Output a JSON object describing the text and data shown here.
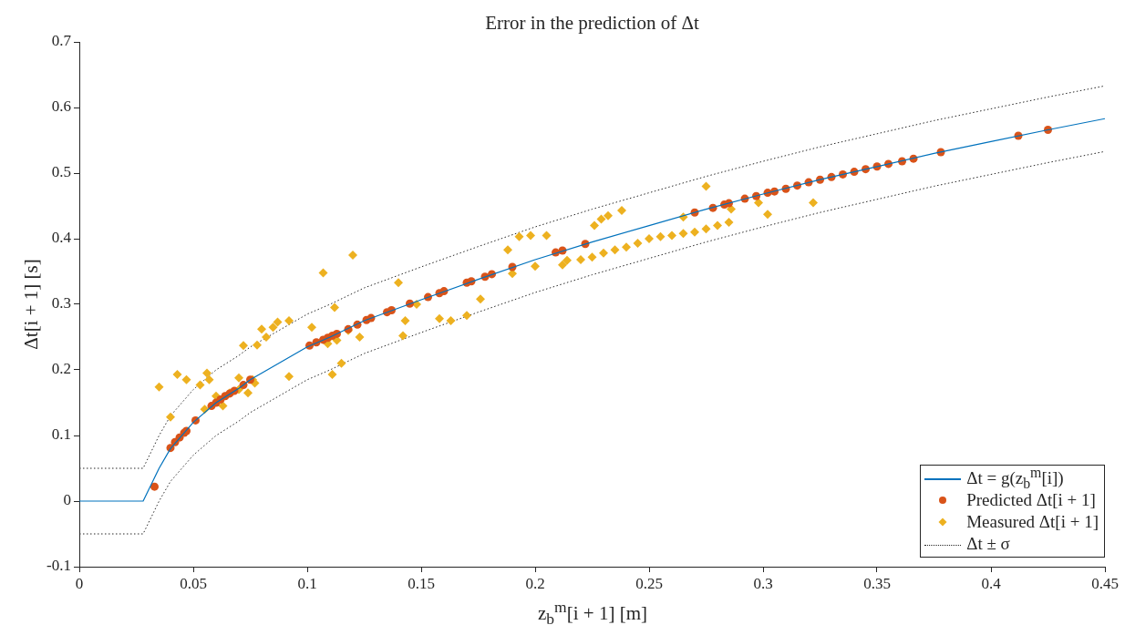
{
  "chart_data": {
    "type": "scatter",
    "title": "Error in the prediction of Δt",
    "xlabel": "z$_{b}$$^{m}$[i + 1] [m]",
    "ylabel": "Δt[i + 1] [s]",
    "xlim": [
      0,
      0.45
    ],
    "xticks": [
      0,
      0.05,
      0.1,
      0.15,
      0.2,
      0.25,
      0.3,
      0.35,
      0.4,
      0.45
    ],
    "ylim": [
      -0.1,
      0.7
    ],
    "yticks": [
      -0.1,
      0,
      0.1,
      0.2,
      0.3,
      0.4,
      0.5,
      0.6,
      0.7
    ],
    "grid": false,
    "legend": "bottom right",
    "series": [
      {
        "name": "Δt = g(z$_{b}$$^{m}$[i])",
        "type": "line",
        "marker": "none",
        "line_style": "solid",
        "color": "#0072bd",
        "x": [
          0,
          0.028,
          0.035,
          0.04,
          0.05,
          0.06,
          0.07,
          0.075,
          0.1,
          0.11,
          0.125,
          0.15,
          0.175,
          0.2,
          0.225,
          0.25,
          0.275,
          0.3,
          0.325,
          0.35,
          0.375,
          0.4,
          0.425,
          0.45
        ],
        "values": [
          0,
          0,
          0.05,
          0.08,
          0.12,
          0.15,
          0.172,
          0.185,
          0.235,
          0.25,
          0.275,
          0.307,
          0.338,
          0.368,
          0.395,
          0.42,
          0.445,
          0.468,
          0.49,
          0.51,
          0.53,
          0.548,
          0.566,
          0.583
        ]
      },
      {
        "name": "Predicted Δt[i + 1]",
        "type": "scatter",
        "marker": "circle",
        "color": "#d95319",
        "x": [
          0.033,
          0.04,
          0.042,
          0.044,
          0.046,
          0.047,
          0.051,
          0.058,
          0.06,
          0.062,
          0.064,
          0.066,
          0.068,
          0.072,
          0.075,
          0.101,
          0.104,
          0.107,
          0.109,
          0.111,
          0.113,
          0.118,
          0.122,
          0.126,
          0.128,
          0.135,
          0.137,
          0.145,
          0.153,
          0.158,
          0.16,
          0.17,
          0.172,
          0.178,
          0.181,
          0.19,
          0.209,
          0.212,
          0.222,
          0.27,
          0.278,
          0.283,
          0.285,
          0.292,
          0.297,
          0.302,
          0.305,
          0.31,
          0.315,
          0.32,
          0.325,
          0.33,
          0.335,
          0.34,
          0.345,
          0.35,
          0.355,
          0.361,
          0.366,
          0.378,
          0.412,
          0.425
        ],
        "values": [
          0.022,
          0.081,
          0.09,
          0.097,
          0.104,
          0.107,
          0.123,
          0.145,
          0.15,
          0.155,
          0.16,
          0.164,
          0.168,
          0.177,
          0.185,
          0.237,
          0.242,
          0.246,
          0.249,
          0.252,
          0.255,
          0.262,
          0.269,
          0.276,
          0.279,
          0.288,
          0.291,
          0.301,
          0.311,
          0.317,
          0.32,
          0.333,
          0.335,
          0.342,
          0.346,
          0.357,
          0.379,
          0.382,
          0.392,
          0.44,
          0.447,
          0.452,
          0.454,
          0.461,
          0.465,
          0.47,
          0.472,
          0.476,
          0.481,
          0.486,
          0.49,
          0.494,
          0.498,
          0.502,
          0.506,
          0.51,
          0.514,
          0.518,
          0.522,
          0.532,
          0.557,
          0.566
        ]
      },
      {
        "name": "Measured Δt[i + 1]",
        "type": "scatter",
        "marker": "diamond",
        "color": "#edb120",
        "x": [
          0.035,
          0.04,
          0.043,
          0.047,
          0.053,
          0.055,
          0.056,
          0.057,
          0.06,
          0.063,
          0.066,
          0.07,
          0.07,
          0.072,
          0.074,
          0.076,
          0.077,
          0.078,
          0.08,
          0.082,
          0.085,
          0.087,
          0.092,
          0.092,
          0.102,
          0.107,
          0.109,
          0.11,
          0.111,
          0.112,
          0.113,
          0.115,
          0.118,
          0.12,
          0.123,
          0.14,
          0.142,
          0.143,
          0.148,
          0.158,
          0.163,
          0.17,
          0.176,
          0.188,
          0.19,
          0.193,
          0.198,
          0.2,
          0.205,
          0.212,
          0.214,
          0.22,
          0.225,
          0.23,
          0.235,
          0.24,
          0.245,
          0.25,
          0.255,
          0.26,
          0.265,
          0.27,
          0.275,
          0.28,
          0.285,
          0.226,
          0.229,
          0.232,
          0.238,
          0.265,
          0.275,
          0.286,
          0.298,
          0.302,
          0.322
        ],
        "values": [
          0.174,
          0.128,
          0.193,
          0.185,
          0.177,
          0.14,
          0.195,
          0.185,
          0.16,
          0.145,
          0.165,
          0.188,
          0.17,
          0.237,
          0.165,
          0.185,
          0.18,
          0.238,
          0.262,
          0.25,
          0.265,
          0.273,
          0.275,
          0.19,
          0.265,
          0.348,
          0.24,
          0.25,
          0.193,
          0.295,
          0.245,
          0.21,
          0.26,
          0.375,
          0.25,
          0.333,
          0.252,
          0.275,
          0.3,
          0.278,
          0.275,
          0.283,
          0.308,
          0.383,
          0.347,
          0.403,
          0.405,
          0.358,
          0.405,
          0.36,
          0.367,
          0.368,
          0.372,
          0.378,
          0.383,
          0.387,
          0.393,
          0.4,
          0.403,
          0.405,
          0.408,
          0.41,
          0.415,
          0.42,
          0.425,
          0.42,
          0.43,
          0.435,
          0.443,
          0.433,
          0.48,
          0.445,
          0.455,
          0.437,
          0.455
        ]
      },
      {
        "name": "Δt ± σ",
        "type": "line",
        "marker": "none",
        "line_style": "dotted",
        "color": "#262626",
        "x": [
          0,
          0.028,
          0.035,
          0.04,
          0.05,
          0.06,
          0.07,
          0.075,
          0.1,
          0.11,
          0.125,
          0.15,
          0.175,
          0.2,
          0.225,
          0.25,
          0.275,
          0.3,
          0.325,
          0.35,
          0.375,
          0.4,
          0.425,
          0.45
        ],
        "values": [
          0.05,
          0.05,
          0.1,
          0.13,
          0.17,
          0.2,
          0.222,
          0.235,
          0.285,
          0.3,
          0.325,
          0.357,
          0.388,
          0.418,
          0.445,
          0.47,
          0.495,
          0.518,
          0.54,
          0.56,
          0.58,
          0.598,
          0.616,
          0.633
        ]
      },
      {
        "type": "line",
        "marker": "none",
        "line_style": "dotted",
        "color": "#262626",
        "x": [
          0,
          0.028,
          0.035,
          0.04,
          0.05,
          0.06,
          0.07,
          0.075,
          0.1,
          0.11,
          0.125,
          0.15,
          0.175,
          0.2,
          0.225,
          0.25,
          0.275,
          0.3,
          0.325,
          0.35,
          0.375,
          0.4,
          0.425,
          0.45
        ],
        "values": [
          -0.05,
          -0.05,
          0,
          0.03,
          0.07,
          0.1,
          0.122,
          0.135,
          0.185,
          0.2,
          0.225,
          0.257,
          0.288,
          0.318,
          0.345,
          0.37,
          0.395,
          0.418,
          0.44,
          0.46,
          0.48,
          0.498,
          0.516,
          0.533
        ]
      }
    ]
  }
}
